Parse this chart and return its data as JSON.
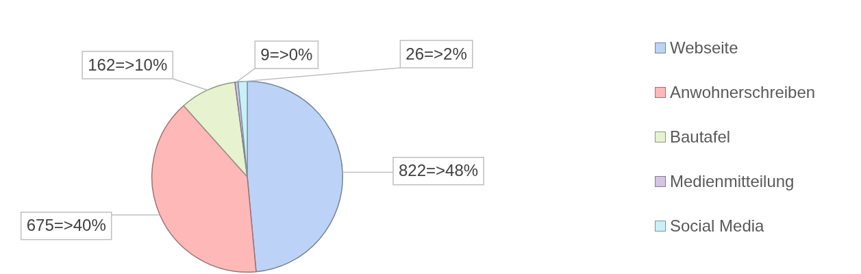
{
  "chart_data": {
    "type": "pie",
    "categories": [
      "Webseite",
      "Anwohnerschreiben",
      "Bautafel",
      "Medienmitteilung",
      "Social Media"
    ],
    "values": [
      822,
      675,
      162,
      9,
      26
    ],
    "colors": [
      "#bcd3f7",
      "#ffb8b8",
      "#e6f2d0",
      "#d4c4e6",
      "#c9f0fa"
    ],
    "value_labels": [
      "822=>48%",
      "675=>40%",
      "162=>10%",
      "9=>0%",
      "26=>2%"
    ],
    "legend": "right"
  }
}
